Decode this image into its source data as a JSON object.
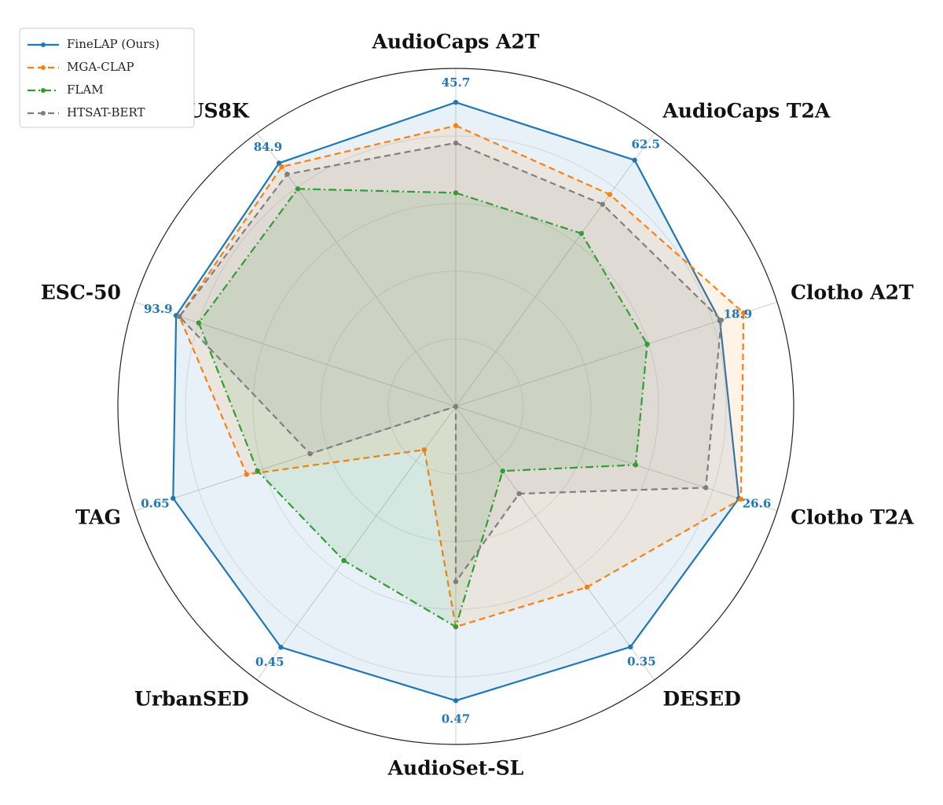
{
  "chart_data": {
    "type": "radar",
    "categories": [
      "AudioCaps A2T",
      "AudioCaps T2A",
      "Clotho A2T",
      "Clotho T2A",
      "DESED",
      "AudioSet-SL",
      "UrbanSED",
      "TAG",
      "ESC-50",
      "US8K"
    ],
    "axis_ranges": [
      [
        0,
        50.8
      ],
      [
        0,
        69.4
      ],
      [
        0,
        23.0
      ],
      [
        0,
        30.2
      ],
      [
        0,
        0.398
      ],
      [
        0,
        0.54
      ],
      [
        0,
        0.511
      ],
      [
        0,
        0.739
      ],
      [
        0,
        107.9
      ],
      [
        0,
        95.4
      ]
    ],
    "grid": true,
    "legend_position": "upper left",
    "series": [
      {
        "name": "FineLAP (Ours)",
        "color": "#1f77b4",
        "linestyle": "solid",
        "labeled": true,
        "values": [
          45.7,
          62.5,
          18.9,
          26.6,
          0.35,
          0.47,
          0.45,
          0.65,
          93.9,
          84.9
        ]
      },
      {
        "name": "MGA-CLAP",
        "color": "#ff7f0e",
        "linestyle": "dashed",
        "values": [
          42.2,
          53.8,
          20.6,
          26.8,
          0.263,
          0.352,
          0.081,
          0.481,
          92.8,
          83.6
        ]
      },
      {
        "name": "FLAM",
        "color": "#2ca02c",
        "linestyle": "dashdot",
        "values": [
          32.1,
          43.9,
          13.7,
          16.9,
          0.094,
          0.352,
          0.288,
          0.456,
          86.3,
          75.9
        ]
      },
      {
        "name": "HTSAT-BERT",
        "color": "#7f7f7f",
        "linestyle": "dashed",
        "values": [
          39.6,
          51.3,
          19.0,
          23.5,
          0.127,
          0.28,
          0,
          0.335,
          92.8,
          81.0
        ]
      }
    ]
  }
}
